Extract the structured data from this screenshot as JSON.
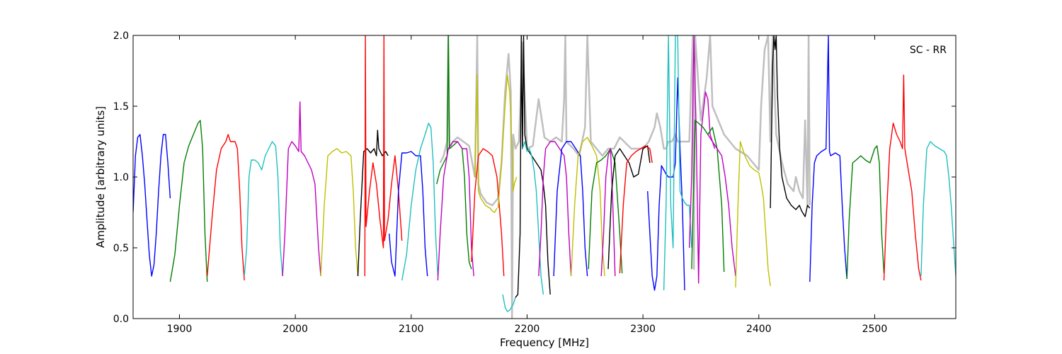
{
  "chart_data": {
    "type": "line",
    "xlabel": "Frequency [MHz]",
    "ylabel": "Amplitude [arbitrary units]",
    "annotation": "SC - RR",
    "annotation_position": "top-right",
    "xlim": [
      1860,
      2570
    ],
    "ylim": [
      0.0,
      2.0
    ],
    "xticks": [
      1900,
      2000,
      2100,
      2200,
      2300,
      2400,
      2500
    ],
    "yticks": [
      0.0,
      0.5,
      1.0,
      1.5,
      2.0
    ],
    "xtick_labels": [
      "1900",
      "2000",
      "2100",
      "2200",
      "2300",
      "2400",
      "2500"
    ],
    "ytick_labels": [
      "0.0",
      "0.5",
      "1.0",
      "1.5",
      "2.0"
    ],
    "grid": false,
    "background_series": {
      "color": "#bfbfbf",
      "x": [
        2125,
        2128,
        2131,
        2132,
        2133,
        2136,
        2140,
        2145,
        2150,
        2155,
        2157,
        2158,
        2160,
        2165,
        2170,
        2175,
        2178,
        2181,
        2184,
        2186,
        2187,
        2188,
        2190,
        2193,
        2196,
        2200,
        2205,
        2210,
        2215,
        2220,
        2225,
        2230,
        2232,
        2233,
        2234,
        2240,
        2245,
        2250,
        2252,
        2255,
        2260,
        2265,
        2270,
        2275,
        2280,
        2290,
        2300,
        2305,
        2310,
        2312,
        2315,
        2318,
        2320,
        2322,
        2325,
        2328,
        2330,
        2335,
        2340,
        2343,
        2344,
        2345,
        2350,
        2355,
        2358,
        2360,
        2365,
        2370,
        2380,
        2390,
        2395,
        2400,
        2402,
        2405,
        2408,
        2410,
        2412,
        2415,
        2420,
        2425,
        2430,
        2432,
        2435,
        2438,
        2440,
        2442,
        2443,
        2444
      ],
      "y": [
        1.1,
        1.15,
        1.25,
        2.0,
        1.2,
        1.25,
        1.28,
        1.25,
        1.22,
        1.0,
        2.0,
        0.95,
        0.88,
        0.82,
        0.8,
        0.85,
        1.1,
        1.6,
        1.87,
        1.6,
        0.0,
        1.3,
        1.2,
        1.25,
        1.95,
        1.2,
        1.22,
        1.55,
        1.28,
        1.25,
        1.28,
        1.25,
        1.55,
        2.0,
        1.25,
        1.2,
        1.15,
        1.35,
        2.0,
        1.25,
        1.2,
        1.15,
        1.2,
        1.2,
        1.28,
        1.2,
        1.2,
        1.25,
        1.35,
        1.45,
        1.35,
        1.2,
        1.2,
        1.25,
        1.25,
        1.3,
        1.25,
        1.25,
        1.25,
        2.0,
        0.35,
        2.0,
        1.4,
        1.7,
        2.0,
        1.5,
        1.4,
        1.3,
        1.2,
        1.15,
        1.1,
        1.05,
        1.5,
        1.9,
        2.0,
        1.25,
        2.0,
        1.3,
        1.1,
        0.95,
        0.9,
        1.0,
        0.9,
        0.85,
        1.4,
        0.8,
        2.0,
        0.8
      ]
    },
    "series": [
      {
        "color": "#0000ff",
        "x": [
          1860,
          1862,
          1864,
          1866,
          1868,
          1870,
          1872,
          1874,
          1876,
          1878,
          1880,
          1882,
          1884,
          1886,
          1888,
          1890,
          1892
        ],
        "y": [
          0.75,
          1.15,
          1.28,
          1.3,
          1.15,
          0.95,
          0.7,
          0.45,
          0.3,
          0.38,
          0.6,
          0.9,
          1.15,
          1.3,
          1.3,
          1.1,
          0.85
        ]
      },
      {
        "color": "#007f00",
        "x": [
          1892,
          1896,
          1900,
          1904,
          1908,
          1912,
          1916,
          1918,
          1920,
          1922,
          1924
        ],
        "y": [
          0.26,
          0.45,
          0.8,
          1.1,
          1.22,
          1.3,
          1.38,
          1.4,
          1.2,
          0.6,
          0.26
        ]
      },
      {
        "color": "#ff0000",
        "x": [
          1924,
          1928,
          1932,
          1936,
          1940,
          1942,
          1944,
          1948,
          1950,
          1952,
          1954,
          1956
        ],
        "y": [
          0.3,
          0.7,
          1.05,
          1.2,
          1.25,
          1.3,
          1.25,
          1.25,
          1.2,
          0.9,
          0.5,
          0.27
        ]
      },
      {
        "color": "#1fbfbf",
        "x": [
          1956,
          1958,
          1960,
          1962,
          1965,
          1968,
          1971,
          1974,
          1977,
          1980,
          1983,
          1985,
          1987,
          1989
        ],
        "y": [
          0.3,
          0.5,
          1.0,
          1.12,
          1.12,
          1.1,
          1.05,
          1.15,
          1.2,
          1.25,
          1.22,
          1.0,
          0.5,
          0.3
        ]
      },
      {
        "color": "#bf00bf",
        "x": [
          1989,
          1991,
          1994,
          1997,
          2000,
          2003,
          2004,
          2005,
          2008,
          2011,
          2014,
          2017,
          2020,
          2022
        ],
        "y": [
          0.3,
          0.6,
          1.2,
          1.25,
          1.22,
          1.18,
          1.53,
          1.18,
          1.15,
          1.1,
          1.05,
          0.95,
          0.5,
          0.3
        ]
      },
      {
        "color": "#bfbf00",
        "x": [
          2022,
          2025,
          2028,
          2032,
          2036,
          2040,
          2044,
          2048,
          2050,
          2052,
          2054
        ],
        "y": [
          0.3,
          0.8,
          1.15,
          1.18,
          1.2,
          1.17,
          1.18,
          1.15,
          0.9,
          0.5,
          0.3
        ]
      },
      {
        "color": "#000000",
        "x": [
          2054,
          2056,
          2059,
          2062,
          2065,
          2068,
          2070,
          2071,
          2072,
          2075,
          2078,
          2080
        ],
        "y": [
          0.3,
          0.7,
          1.18,
          1.2,
          1.17,
          1.2,
          1.15,
          1.33,
          1.2,
          1.15,
          1.18,
          1.15
        ]
      },
      {
        "color": "#ff0000",
        "x": [
          2060,
          2060.5,
          2061,
          2064,
          2067,
          2070,
          2073,
          2076,
          2076.5,
          2077,
          2080,
          2083,
          2086,
          2089,
          2092
        ],
        "y": [
          0.3,
          2.0,
          0.65,
          0.9,
          1.1,
          0.95,
          0.7,
          0.5,
          2.0,
          0.55,
          0.7,
          0.95,
          1.15,
          0.9,
          0.55
        ]
      },
      {
        "color": "#0000ff",
        "x": [
          2081,
          2083,
          2086,
          2089,
          2092,
          2096,
          2100,
          2104,
          2108,
          2110,
          2112,
          2114
        ],
        "y": [
          0.6,
          0.4,
          0.3,
          0.9,
          1.17,
          1.17,
          1.18,
          1.15,
          1.15,
          0.9,
          0.5,
          0.3
        ]
      },
      {
        "color": "#1fbfbf",
        "x": [
          2092,
          2096,
          2100,
          2104,
          2108,
          2112,
          2115,
          2117,
          2119,
          2121,
          2123
        ],
        "y": [
          0.27,
          0.45,
          0.8,
          1.05,
          1.2,
          1.3,
          1.38,
          1.35,
          1.1,
          0.6,
          0.3
        ]
      },
      {
        "color": "#007f00",
        "x": [
          2122,
          2125,
          2128,
          2131,
          2132,
          2133,
          2136,
          2140,
          2144,
          2146,
          2148,
          2150,
          2152
        ],
        "y": [
          0.95,
          1.05,
          1.1,
          1.15,
          2.0,
          1.2,
          1.22,
          1.25,
          1.2,
          1.0,
          0.6,
          0.4,
          0.35
        ]
      },
      {
        "color": "#bf00bf",
        "x": [
          2123,
          2125,
          2128,
          2132,
          2136,
          2140,
          2144,
          2148,
          2150,
          2152,
          2154
        ],
        "y": [
          0.27,
          0.6,
          1.0,
          1.2,
          1.25,
          1.25,
          1.2,
          1.2,
          1.0,
          0.5,
          0.3
        ]
      },
      {
        "color": "#bfbf00",
        "x": [
          2155,
          2157,
          2158,
          2160,
          2164,
          2168,
          2170,
          2172,
          2174
        ],
        "y": [
          1.0,
          1.72,
          0.9,
          0.85,
          0.8,
          0.78,
          0.76,
          0.75,
          0.78
        ]
      },
      {
        "color": "#ff0000",
        "x": [
          2152,
          2155,
          2158,
          2162,
          2166,
          2170,
          2174,
          2178,
          2180
        ],
        "y": [
          0.4,
          0.9,
          1.15,
          1.2,
          1.18,
          1.15,
          1.0,
          0.6,
          0.3
        ]
      },
      {
        "color": "#bfbf00",
        "x": [
          2175,
          2178,
          2181,
          2183,
          2185,
          2187,
          2188,
          2189,
          2191
        ],
        "y": [
          0.78,
          1.1,
          1.5,
          1.72,
          1.6,
          1.2,
          0.9,
          0.95,
          1.0
        ]
      },
      {
        "color": "#1fbfbf",
        "x": [
          2179,
          2181,
          2183,
          2185,
          2188,
          2190
        ],
        "y": [
          0.17,
          0.08,
          0.05,
          0.06,
          0.1,
          0.15
        ]
      },
      {
        "color": "#000000",
        "x": [
          2190,
          2192,
          2194,
          2195,
          2196,
          2197,
          2198,
          2200,
          2204,
          2208,
          2212,
          2214,
          2216,
          2218,
          2220
        ],
        "y": [
          0.15,
          0.17,
          0.6,
          2.0,
          1.2,
          2.0,
          1.3,
          1.2,
          1.15,
          1.1,
          1.05,
          0.95,
          0.8,
          0.4,
          0.17
        ]
      },
      {
        "color": "#1fbfbf",
        "x": [
          2196,
          2198,
          2200,
          2202,
          2204,
          2206,
          2208,
          2210,
          2212,
          2214
        ],
        "y": [
          1.2,
          1.25,
          1.18,
          1.2,
          1.15,
          1.05,
          0.9,
          0.6,
          0.3,
          0.17
        ]
      },
      {
        "color": "#bf00bf",
        "x": [
          2210,
          2212,
          2214,
          2216,
          2220,
          2224,
          2228,
          2232,
          2234,
          2236,
          2238
        ],
        "y": [
          0.3,
          0.6,
          1.0,
          1.2,
          1.25,
          1.25,
          1.2,
          1.15,
          1.0,
          0.6,
          0.3
        ]
      },
      {
        "color": "#0000ff",
        "x": [
          2223,
          2226,
          2230,
          2234,
          2238,
          2242,
          2246,
          2248,
          2250,
          2252
        ],
        "y": [
          0.3,
          0.9,
          1.2,
          1.25,
          1.25,
          1.2,
          1.15,
          0.9,
          0.5,
          0.3
        ]
      },
      {
        "color": "#bfbf00",
        "x": [
          2238,
          2241,
          2244,
          2248,
          2252,
          2256,
          2260,
          2263,
          2265,
          2267
        ],
        "y": [
          0.3,
          0.8,
          1.15,
          1.25,
          1.28,
          1.22,
          1.15,
          0.9,
          0.5,
          0.3
        ]
      },
      {
        "color": "#007f00",
        "x": [
          2253,
          2256,
          2260,
          2264,
          2268,
          2272,
          2276,
          2280,
          2282
        ],
        "y": [
          0.35,
          0.9,
          1.1,
          1.12,
          1.15,
          1.2,
          1.1,
          0.6,
          0.32
        ]
      },
      {
        "color": "#bf00bf",
        "x": [
          2264,
          2266,
          2268,
          2270,
          2272,
          2274,
          2276
        ],
        "y": [
          0.3,
          0.6,
          1.0,
          1.15,
          1.2,
          0.8,
          0.3
        ]
      },
      {
        "color": "#000000",
        "x": [
          2270,
          2273,
          2276,
          2280,
          2284,
          2288,
          2292,
          2296,
          2300,
          2304,
          2306
        ],
        "y": [
          0.35,
          0.9,
          1.15,
          1.2,
          1.15,
          1.1,
          1.0,
          1.02,
          1.2,
          1.22,
          1.1
        ]
      },
      {
        "color": "#ff0000",
        "x": [
          2280,
          2283,
          2286,
          2290,
          2294,
          2298,
          2302,
          2306,
          2308
        ],
        "y": [
          0.32,
          0.8,
          1.1,
          1.15,
          1.18,
          1.2,
          1.22,
          1.2,
          1.1
        ]
      },
      {
        "color": "#0000ff",
        "x": [
          2304,
          2306,
          2308,
          2310,
          2312,
          2314,
          2316,
          2318,
          2320,
          2322,
          2326,
          2328,
          2330,
          2332,
          2334,
          2336
        ],
        "y": [
          0.9,
          0.6,
          0.3,
          0.2,
          0.3,
          0.8,
          1.08,
          1.05,
          1.02,
          1.0,
          1.0,
          1.1,
          1.7,
          1.2,
          0.8,
          0.2
        ]
      },
      {
        "color": "#1fbfbf",
        "x": [
          2318,
          2320,
          2322,
          2324,
          2326,
          2328,
          2330,
          2332,
          2334,
          2336,
          2338,
          2340,
          2342
        ],
        "y": [
          0.2,
          0.8,
          2.0,
          0.8,
          0.5,
          2.0,
          2.0,
          0.9,
          0.85,
          0.82,
          0.8,
          0.8,
          0.5
        ]
      },
      {
        "color": "#bf00bf",
        "x": [
          2340,
          2342,
          2344,
          2346,
          2348,
          2350,
          2352,
          2354,
          2356,
          2358,
          2360,
          2362
        ],
        "y": [
          0.5,
          1.0,
          2.0,
          1.3,
          0.25,
          1.3,
          1.45,
          1.6,
          1.55,
          1.3,
          1.25,
          1.2
        ]
      },
      {
        "color": "#007f00",
        "x": [
          2342,
          2345,
          2348,
          2352,
          2356,
          2360,
          2364,
          2368,
          2370
        ],
        "y": [
          0.35,
          1.4,
          1.38,
          1.35,
          1.3,
          1.35,
          1.2,
          0.8,
          0.33
        ]
      },
      {
        "color": "#bf00bf",
        "x": [
          2356,
          2360,
          2364,
          2368,
          2371,
          2374,
          2377,
          2380
        ],
        "y": [
          1.3,
          1.25,
          1.2,
          1.15,
          1.0,
          0.8,
          0.5,
          0.3
        ]
      },
      {
        "color": "#bfbf00",
        "x": [
          2380,
          2382,
          2384,
          2388,
          2392,
          2396,
          2400,
          2402,
          2404,
          2406,
          2408,
          2410
        ],
        "y": [
          0.22,
          0.8,
          1.25,
          1.15,
          1.08,
          1.05,
          1.03,
          0.95,
          0.85,
          0.6,
          0.35,
          0.23
        ]
      },
      {
        "color": "#000000",
        "x": [
          2410,
          2412,
          2413,
          2414,
          2415,
          2416,
          2418,
          2420,
          2424,
          2428,
          2432,
          2435,
          2437,
          2440,
          2442,
          2444
        ],
        "y": [
          0.78,
          1.8,
          2.0,
          1.9,
          2.0,
          1.6,
          1.2,
          1.0,
          0.85,
          0.8,
          0.77,
          0.8,
          0.76,
          0.72,
          0.8,
          0.78
        ]
      },
      {
        "color": "#0000ff",
        "x": [
          2444,
          2446,
          2448,
          2450,
          2454,
          2458,
          2460,
          2461,
          2462,
          2466,
          2470,
          2472,
          2474,
          2476
        ],
        "y": [
          0.26,
          0.8,
          1.1,
          1.15,
          1.18,
          1.2,
          2.0,
          1.18,
          1.15,
          1.17,
          1.15,
          0.8,
          0.5,
          0.28
        ]
      },
      {
        "color": "#007f00",
        "x": [
          2476,
          2478,
          2481,
          2484,
          2488,
          2492,
          2496,
          2500,
          2502,
          2504,
          2506,
          2508
        ],
        "y": [
          0.28,
          0.7,
          1.1,
          1.12,
          1.15,
          1.12,
          1.1,
          1.2,
          1.22,
          1.1,
          0.6,
          0.32
        ]
      },
      {
        "color": "#ff0000",
        "x": [
          2508,
          2510,
          2513,
          2516,
          2519,
          2522,
          2524,
          2525,
          2526,
          2529,
          2532,
          2535,
          2538,
          2540
        ],
        "y": [
          0.27,
          0.7,
          1.2,
          1.38,
          1.3,
          1.25,
          1.2,
          1.72,
          1.2,
          1.05,
          0.9,
          0.6,
          0.35,
          0.27
        ]
      },
      {
        "color": "#1fbfbf",
        "x": [
          2540,
          2542,
          2545,
          2548,
          2552,
          2556,
          2560,
          2562,
          2564,
          2566,
          2568,
          2570
        ],
        "y": [
          0.3,
          0.8,
          1.2,
          1.25,
          1.22,
          1.2,
          1.18,
          1.15,
          1.0,
          0.8,
          0.55,
          0.3
        ]
      }
    ]
  }
}
